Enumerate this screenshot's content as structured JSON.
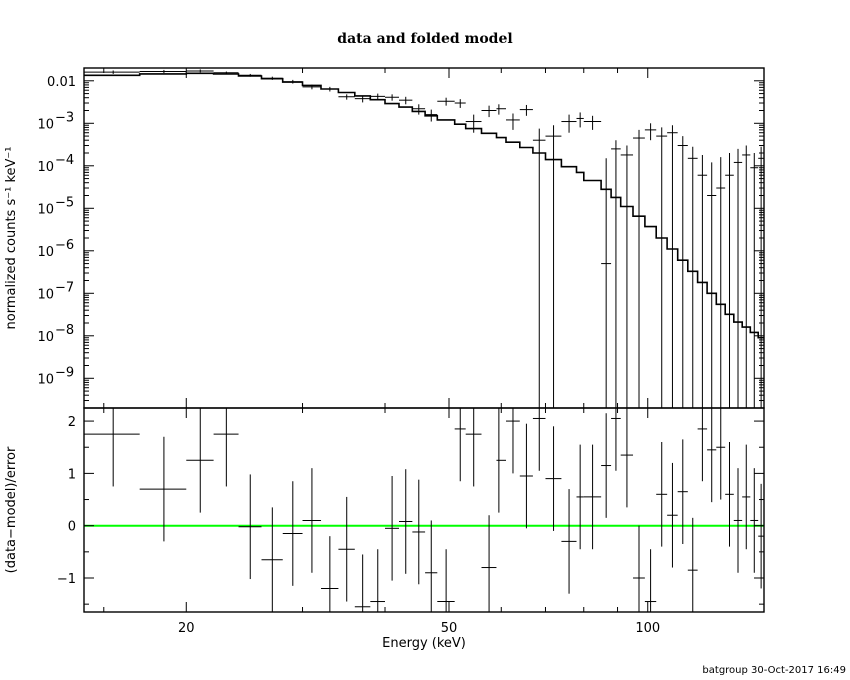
{
  "chart_data": [
    {
      "panel": "spectrum",
      "type": "scatter",
      "title": "data and folded model",
      "ylabel": "normalized counts s⁻¹ keV⁻¹",
      "xscale": "log",
      "yscale": "log",
      "xlim": [
        14,
        150
      ],
      "ylim": [
        2e-10,
        0.02
      ],
      "yticks": [
        {
          "value": 0.01,
          "label": "0.01"
        },
        {
          "value": 0.001,
          "base": "10",
          "exp": "−3"
        },
        {
          "value": 0.0001,
          "base": "10",
          "exp": "−4"
        },
        {
          "value": 1e-05,
          "base": "10",
          "exp": "−5"
        },
        {
          "value": 1e-06,
          "base": "10",
          "exp": "−6"
        },
        {
          "value": 1e-07,
          "base": "10",
          "exp": "−7"
        },
        {
          "value": 1e-08,
          "base": "10",
          "exp": "−8"
        },
        {
          "value": 1e-09,
          "base": "10",
          "exp": "−9"
        }
      ],
      "data_points": [
        {
          "x": 15.5,
          "xlo": 14,
          "xhi": 17,
          "y": 0.016,
          "ylo": 0.0145,
          "yhi": 0.0175
        },
        {
          "x": 18.5,
          "xlo": 17,
          "xhi": 20,
          "y": 0.0165,
          "ylo": 0.0152,
          "yhi": 0.018
        },
        {
          "x": 21,
          "xlo": 20,
          "xhi": 22,
          "y": 0.017,
          "ylo": 0.0158,
          "yhi": 0.0185
        },
        {
          "x": 23,
          "xlo": 22,
          "xhi": 24,
          "y": 0.0155,
          "ylo": 0.0145,
          "yhi": 0.0165
        },
        {
          "x": 25,
          "xlo": 24,
          "xhi": 26,
          "y": 0.0135,
          "ylo": 0.0125,
          "yhi": 0.0145
        },
        {
          "x": 27,
          "xlo": 26,
          "xhi": 28,
          "y": 0.0115,
          "ylo": 0.0105,
          "yhi": 0.0125
        },
        {
          "x": 29,
          "xlo": 28,
          "xhi": 30,
          "y": 0.0095,
          "ylo": 0.0086,
          "yhi": 0.0105
        },
        {
          "x": 31,
          "xlo": 30,
          "xhi": 32,
          "y": 0.0072,
          "ylo": 0.0063,
          "yhi": 0.0081
        },
        {
          "x": 33,
          "xlo": 32,
          "xhi": 34,
          "y": 0.0064,
          "ylo": 0.0056,
          "yhi": 0.0072
        },
        {
          "x": 35,
          "xlo": 34,
          "xhi": 36,
          "y": 0.0042,
          "ylo": 0.0036,
          "yhi": 0.0048
        },
        {
          "x": 37,
          "xlo": 36,
          "xhi": 38,
          "y": 0.0038,
          "ylo": 0.0031,
          "yhi": 0.0045
        },
        {
          "x": 39,
          "xlo": 38,
          "xhi": 40,
          "y": 0.0043,
          "ylo": 0.0036,
          "yhi": 0.005
        },
        {
          "x": 41,
          "xlo": 40,
          "xhi": 42,
          "y": 0.0041,
          "ylo": 0.0034,
          "yhi": 0.0048
        },
        {
          "x": 43,
          "xlo": 42,
          "xhi": 44,
          "y": 0.0035,
          "ylo": 0.0028,
          "yhi": 0.0042
        },
        {
          "x": 45,
          "xlo": 44,
          "xhi": 46,
          "y": 0.0022,
          "ylo": 0.0016,
          "yhi": 0.0028
        },
        {
          "x": 47,
          "xlo": 46,
          "xhi": 48,
          "y": 0.0016,
          "ylo": 0.0011,
          "yhi": 0.0021
        },
        {
          "x": 49.5,
          "xlo": 48,
          "xhi": 51,
          "y": 0.0033,
          "ylo": 0.0026,
          "yhi": 0.004
        },
        {
          "x": 52,
          "xlo": 51,
          "xhi": 53,
          "y": 0.003,
          "ylo": 0.0023,
          "yhi": 0.0037
        },
        {
          "x": 54.5,
          "xlo": 53,
          "xhi": 56,
          "y": 0.0011,
          "ylo": 0.0006,
          "yhi": 0.0016
        },
        {
          "x": 57.5,
          "xlo": 56,
          "xhi": 59,
          "y": 0.002,
          "ylo": 0.0014,
          "yhi": 0.0026
        },
        {
          "x": 59.5,
          "xlo": 59,
          "xhi": 61,
          "y": 0.0022,
          "ylo": 0.0016,
          "yhi": 0.0028
        },
        {
          "x": 62.5,
          "xlo": 61,
          "xhi": 64,
          "y": 0.0012,
          "ylo": 0.0007,
          "yhi": 0.0017
        },
        {
          "x": 65.5,
          "xlo": 64,
          "xhi": 67,
          "y": 0.0021,
          "ylo": 0.0015,
          "yhi": 0.0027
        },
        {
          "x": 68.5,
          "xlo": 67,
          "xhi": 70,
          "y": 0.0004,
          "ylo": 2e-10,
          "yhi": 0.00075
        },
        {
          "x": 72,
          "xlo": 70,
          "xhi": 74,
          "y": 0.0005,
          "ylo": 2e-10,
          "yhi": 0.0009
        },
        {
          "x": 76,
          "xlo": 74,
          "xhi": 78,
          "y": 0.0011,
          "ylo": 0.0006,
          "yhi": 0.0016
        },
        {
          "x": 79,
          "xlo": 78,
          "xhi": 80,
          "y": 0.0013,
          "ylo": 0.0008,
          "yhi": 0.0018
        },
        {
          "x": 82.5,
          "xlo": 80,
          "xhi": 85,
          "y": 0.0011,
          "ylo": 0.0007,
          "yhi": 0.0015
        },
        {
          "x": 86.5,
          "xlo": 85,
          "xhi": 88,
          "y": 5e-07,
          "ylo": 2e-10,
          "yhi": 0.00015
        },
        {
          "x": 89.5,
          "xlo": 88,
          "xhi": 91,
          "y": 0.00025,
          "ylo": 2e-10,
          "yhi": 0.0004
        },
        {
          "x": 93,
          "xlo": 91,
          "xhi": 95,
          "y": 0.00018,
          "ylo": 2e-10,
          "yhi": 0.0003
        },
        {
          "x": 97,
          "xlo": 95,
          "xhi": 99,
          "y": 0.00045,
          "ylo": 2e-10,
          "yhi": 0.0007
        },
        {
          "x": 101,
          "xlo": 99,
          "xhi": 103,
          "y": 0.0007,
          "ylo": 0.0004,
          "yhi": 0.001
        },
        {
          "x": 105,
          "xlo": 103,
          "xhi": 107,
          "y": 0.0005,
          "ylo": 2e-10,
          "yhi": 0.0008
        },
        {
          "x": 109,
          "xlo": 107,
          "xhi": 111,
          "y": 0.0006,
          "ylo": 2e-10,
          "yhi": 0.0009
        },
        {
          "x": 113,
          "xlo": 111,
          "xhi": 115,
          "y": 0.0003,
          "ylo": 2e-10,
          "yhi": 0.0005
        },
        {
          "x": 117,
          "xlo": 115,
          "xhi": 119,
          "y": 0.00015,
          "ylo": 2e-10,
          "yhi": 0.00028
        },
        {
          "x": 121,
          "xlo": 119,
          "xhi": 123,
          "y": 6e-05,
          "ylo": 2e-10,
          "yhi": 0.00018
        },
        {
          "x": 125,
          "xlo": 123,
          "xhi": 127,
          "y": 2e-05,
          "ylo": 2e-10,
          "yhi": 0.00012
        },
        {
          "x": 129,
          "xlo": 127,
          "xhi": 131,
          "y": 3e-05,
          "ylo": 2e-10,
          "yhi": 0.00016
        },
        {
          "x": 133,
          "xlo": 131,
          "xhi": 135,
          "y": 6e-05,
          "ylo": 2e-10,
          "yhi": 0.0002
        },
        {
          "x": 137,
          "xlo": 135,
          "xhi": 139,
          "y": 0.00012,
          "ylo": 2e-10,
          "yhi": 0.00025
        },
        {
          "x": 141,
          "xlo": 139,
          "xhi": 143,
          "y": 0.00018,
          "ylo": 2e-10,
          "yhi": 0.0003
        },
        {
          "x": 145,
          "xlo": 143,
          "xhi": 147,
          "y": 9e-05,
          "ylo": 2e-10,
          "yhi": 0.0002
        },
        {
          "x": 148.5,
          "xlo": 147,
          "xhi": 150,
          "y": 0.00015,
          "ylo": 2e-10,
          "yhi": 0.00028
        }
      ],
      "model_step": [
        {
          "xlo": 14,
          "xhi": 17,
          "y": 0.0135
        },
        {
          "xlo": 17,
          "xhi": 20,
          "y": 0.0145
        },
        {
          "xlo": 20,
          "xhi": 22,
          "y": 0.015
        },
        {
          "xlo": 22,
          "xhi": 24,
          "y": 0.0145
        },
        {
          "xlo": 24,
          "xhi": 26,
          "y": 0.013
        },
        {
          "xlo": 26,
          "xhi": 28,
          "y": 0.0112
        },
        {
          "xlo": 28,
          "xhi": 30,
          "y": 0.0093
        },
        {
          "xlo": 30,
          "xhi": 32,
          "y": 0.0078
        },
        {
          "xlo": 32,
          "xhi": 34,
          "y": 0.0064
        },
        {
          "xlo": 34,
          "xhi": 36,
          "y": 0.0053
        },
        {
          "xlo": 36,
          "xhi": 38,
          "y": 0.0044
        },
        {
          "xlo": 38,
          "xhi": 40,
          "y": 0.0036
        },
        {
          "xlo": 40,
          "xhi": 42,
          "y": 0.0029
        },
        {
          "xlo": 42,
          "xhi": 44,
          "y": 0.0024
        },
        {
          "xlo": 44,
          "xhi": 46,
          "y": 0.0019
        },
        {
          "xlo": 46,
          "xhi": 48,
          "y": 0.0015
        },
        {
          "xlo": 48,
          "xhi": 51,
          "y": 0.0012
        },
        {
          "xlo": 51,
          "xhi": 53,
          "y": 0.00095
        },
        {
          "xlo": 53,
          "xhi": 56,
          "y": 0.00075
        },
        {
          "xlo": 56,
          "xhi": 59,
          "y": 0.00058
        },
        {
          "xlo": 59,
          "xhi": 61,
          "y": 0.00046
        },
        {
          "xlo": 61,
          "xhi": 64,
          "y": 0.00036
        },
        {
          "xlo": 64,
          "xhi": 67,
          "y": 0.00027
        },
        {
          "xlo": 67,
          "xhi": 70,
          "y": 0.0002
        },
        {
          "xlo": 70,
          "xhi": 74,
          "y": 0.00014
        },
        {
          "xlo": 74,
          "xhi": 78,
          "y": 9.5e-05
        },
        {
          "xlo": 78,
          "xhi": 80,
          "y": 7e-05
        },
        {
          "xlo": 80,
          "xhi": 85,
          "y": 4.5e-05
        },
        {
          "xlo": 85,
          "xhi": 88,
          "y": 2.8e-05
        },
        {
          "xlo": 88,
          "xhi": 91,
          "y": 1.8e-05
        },
        {
          "xlo": 91,
          "xhi": 95,
          "y": 1.1e-05
        },
        {
          "xlo": 95,
          "xhi": 99,
          "y": 6.5e-06
        },
        {
          "xlo": 99,
          "xhi": 103,
          "y": 3.7e-06
        },
        {
          "xlo": 103,
          "xhi": 107,
          "y": 2e-06
        },
        {
          "xlo": 107,
          "xhi": 111,
          "y": 1.1e-06
        },
        {
          "xlo": 111,
          "xhi": 115,
          "y": 6e-07
        },
        {
          "xlo": 115,
          "xhi": 119,
          "y": 3.3e-07
        },
        {
          "xlo": 119,
          "xhi": 123,
          "y": 1.8e-07
        },
        {
          "xlo": 123,
          "xhi": 127,
          "y": 1e-07
        },
        {
          "xlo": 127,
          "xhi": 131,
          "y": 5.5e-08
        },
        {
          "xlo": 131,
          "xhi": 135,
          "y": 3.2e-08
        },
        {
          "xlo": 135,
          "xhi": 139,
          "y": 2.1e-08
        },
        {
          "xlo": 139,
          "xhi": 143,
          "y": 1.6e-08
        },
        {
          "xlo": 143,
          "xhi": 147,
          "y": 1.2e-08
        },
        {
          "xlo": 147,
          "xhi": 150,
          "y": 9e-09
        }
      ]
    },
    {
      "panel": "residuals",
      "type": "scatter",
      "ylabel": "(data−model)/error",
      "xlabel": "Energy (keV)",
      "xscale": "log",
      "xlim": [
        14,
        150
      ],
      "ylim": [
        -1.65,
        2.25
      ],
      "yticks": [
        {
          "value": 2,
          "label": "2"
        },
        {
          "value": 1,
          "label": "1"
        },
        {
          "value": 0,
          "label": "0"
        },
        {
          "value": -1,
          "label": "−1"
        }
      ],
      "xticks": [
        {
          "value": 20,
          "label": "20"
        },
        {
          "value": 50,
          "label": "50"
        },
        {
          "value": 100,
          "label": "100"
        }
      ],
      "zero_line_color": "#00ff00",
      "data_points": [
        {
          "x": 15.5,
          "xlo": 14,
          "xhi": 17,
          "y": 1.75,
          "ylo": 0.75,
          "yhi": 2.25
        },
        {
          "x": 18.5,
          "xlo": 17,
          "xhi": 20,
          "y": 0.7,
          "ylo": -0.3,
          "yhi": 1.7
        },
        {
          "x": 21,
          "xlo": 20,
          "xhi": 22,
          "y": 1.25,
          "ylo": 0.25,
          "yhi": 2.25
        },
        {
          "x": 23,
          "xlo": 22,
          "xhi": 24,
          "y": 1.75,
          "ylo": 0.75,
          "yhi": 2.25
        },
        {
          "x": 25,
          "xlo": 24,
          "xhi": 26,
          "y": -0.02,
          "ylo": -1.02,
          "yhi": 0.98
        },
        {
          "x": 27,
          "xlo": 26,
          "xhi": 28,
          "y": -0.65,
          "ylo": -1.65,
          "yhi": 0.35
        },
        {
          "x": 29,
          "xlo": 28,
          "xhi": 30,
          "y": -0.15,
          "ylo": -1.15,
          "yhi": 0.85
        },
        {
          "x": 31,
          "xlo": 30,
          "xhi": 32,
          "y": 0.1,
          "ylo": -0.9,
          "yhi": 1.1
        },
        {
          "x": 33,
          "xlo": 32,
          "xhi": 34,
          "y": -1.2,
          "ylo": -1.65,
          "yhi": -0.2
        },
        {
          "x": 35,
          "xlo": 34,
          "xhi": 36,
          "y": -0.45,
          "ylo": -1.45,
          "yhi": 0.55
        },
        {
          "x": 37,
          "xlo": 36,
          "xhi": 38,
          "y": -1.55,
          "ylo": -1.65,
          "yhi": -0.55
        },
        {
          "x": 39,
          "xlo": 38,
          "xhi": 40,
          "y": -1.45,
          "ylo": -1.65,
          "yhi": -0.45
        },
        {
          "x": 41,
          "xlo": 40,
          "xhi": 42,
          "y": -0.05,
          "ylo": -1.05,
          "yhi": 0.95
        },
        {
          "x": 43,
          "xlo": 42,
          "xhi": 44,
          "y": 0.08,
          "ylo": -0.92,
          "yhi": 1.08
        },
        {
          "x": 45,
          "xlo": 44,
          "xhi": 46,
          "y": -0.12,
          "ylo": -1.12,
          "yhi": 0.88
        },
        {
          "x": 47,
          "xlo": 46,
          "xhi": 48,
          "y": -0.9,
          "ylo": -1.65,
          "yhi": 0.1
        },
        {
          "x": 49.5,
          "xlo": 48,
          "xhi": 51,
          "y": -1.45,
          "ylo": -1.65,
          "yhi": -0.45
        },
        {
          "x": 52,
          "xlo": 51,
          "xhi": 53,
          "y": 1.85,
          "ylo": 0.85,
          "yhi": 2.25
        },
        {
          "x": 54.5,
          "xlo": 53,
          "xhi": 56,
          "y": 1.75,
          "ylo": 0.75,
          "yhi": 2.25
        },
        {
          "x": 57.5,
          "xlo": 56,
          "xhi": 59,
          "y": -0.8,
          "ylo": -1.65,
          "yhi": 0.2
        },
        {
          "x": 59.5,
          "xlo": 59,
          "xhi": 61,
          "y": 1.25,
          "ylo": 0.25,
          "yhi": 2.25
        },
        {
          "x": 62.5,
          "xlo": 61,
          "xhi": 64,
          "y": 2.0,
          "ylo": 1.0,
          "yhi": 2.25
        },
        {
          "x": 65.5,
          "xlo": 64,
          "xhi": 67,
          "y": 0.95,
          "ylo": -0.05,
          "yhi": 1.95
        },
        {
          "x": 68.5,
          "xlo": 67,
          "xhi": 70,
          "y": 2.05,
          "ylo": 1.05,
          "yhi": 2.25
        },
        {
          "x": 72,
          "xlo": 70,
          "xhi": 74,
          "y": 0.9,
          "ylo": -0.1,
          "yhi": 1.9
        },
        {
          "x": 76,
          "xlo": 74,
          "xhi": 78,
          "y": -0.3,
          "ylo": -1.3,
          "yhi": 0.7
        },
        {
          "x": 79,
          "xlo": 78,
          "xhi": 80,
          "y": 0.55,
          "ylo": -0.45,
          "yhi": 1.55
        },
        {
          "x": 82.5,
          "xlo": 80,
          "xhi": 85,
          "y": 0.55,
          "ylo": -0.45,
          "yhi": 1.55
        },
        {
          "x": 86.5,
          "xlo": 85,
          "xhi": 88,
          "y": 1.15,
          "ylo": 0.15,
          "yhi": 2.15
        },
        {
          "x": 89.5,
          "xlo": 88,
          "xhi": 91,
          "y": 2.05,
          "ylo": 1.05,
          "yhi": 2.25
        },
        {
          "x": 93,
          "xlo": 91,
          "xhi": 95,
          "y": 1.35,
          "ylo": 0.35,
          "yhi": 2.25
        },
        {
          "x": 97,
          "xlo": 95,
          "xhi": 99,
          "y": -1.0,
          "ylo": -1.65,
          "yhi": 0.0
        },
        {
          "x": 101,
          "xlo": 99,
          "xhi": 103,
          "y": -1.45,
          "ylo": -1.65,
          "yhi": -0.45
        },
        {
          "x": 105,
          "xlo": 103,
          "xhi": 107,
          "y": 0.6,
          "ylo": -0.4,
          "yhi": 1.6
        },
        {
          "x": 109,
          "xlo": 107,
          "xhi": 111,
          "y": 0.2,
          "ylo": -0.8,
          "yhi": 1.2
        },
        {
          "x": 113,
          "xlo": 111,
          "xhi": 115,
          "y": 0.65,
          "ylo": -0.35,
          "yhi": 1.65
        },
        {
          "x": 117,
          "xlo": 115,
          "xhi": 119,
          "y": -0.85,
          "ylo": -1.65,
          "yhi": 0.15
        },
        {
          "x": 121,
          "xlo": 119,
          "xhi": 123,
          "y": 1.85,
          "ylo": 0.85,
          "yhi": 2.25
        },
        {
          "x": 125,
          "xlo": 123,
          "xhi": 127,
          "y": 1.45,
          "ylo": 0.45,
          "yhi": 2.25
        },
        {
          "x": 129,
          "xlo": 127,
          "xhi": 131,
          "y": 1.5,
          "ylo": 0.5,
          "yhi": 2.25
        },
        {
          "x": 133,
          "xlo": 131,
          "xhi": 135,
          "y": 0.6,
          "ylo": -0.4,
          "yhi": 1.6
        },
        {
          "x": 137,
          "xlo": 135,
          "xhi": 139,
          "y": 0.1,
          "ylo": -0.9,
          "yhi": 1.1
        },
        {
          "x": 141,
          "xlo": 139,
          "xhi": 143,
          "y": 0.55,
          "ylo": -0.45,
          "yhi": 1.55
        },
        {
          "x": 145,
          "xlo": 143,
          "xhi": 147,
          "y": 0.1,
          "ylo": -0.9,
          "yhi": 1.1
        },
        {
          "x": 148.5,
          "xlo": 147,
          "xhi": 150,
          "y": -0.2,
          "ylo": -1.2,
          "yhi": 0.8
        }
      ]
    }
  ],
  "footer": "batgroup 30-Oct-2017 16:49"
}
